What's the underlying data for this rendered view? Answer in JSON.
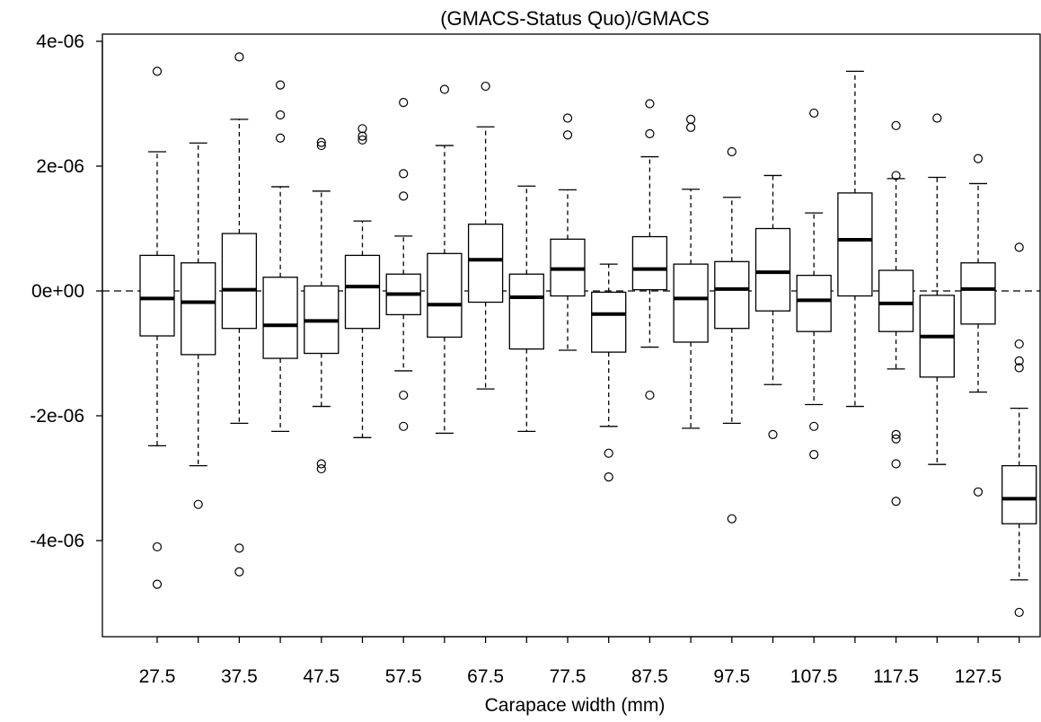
{
  "chart_data": {
    "type": "boxplot",
    "title": "(GMACS-Status Quo)/GMACS",
    "xlabel": "Carapace width (mm)",
    "ylabel": "",
    "ylim": [
      -5.25e-06,
      4.05e-06
    ],
    "y_ticks": [
      {
        "value": 4e-06,
        "label": "4e-06"
      },
      {
        "value": 2e-06,
        "label": "2e-06"
      },
      {
        "value": 0,
        "label": "0e+00"
      },
      {
        "value": -2e-06,
        "label": "-2e-06"
      },
      {
        "value": -4e-06,
        "label": "-4e-06"
      }
    ],
    "x_tick_labels": [
      "27.5",
      "37.5",
      "47.5",
      "57.5",
      "67.5",
      "77.5",
      "87.5",
      "97.5",
      "107.5",
      "117.5",
      "127.5"
    ],
    "reference_line": {
      "y": 0,
      "style": "dashed"
    },
    "grid": false,
    "boxes": [
      {
        "x": 27.5,
        "lower_whisker": -2.48e-06,
        "q1": -7.2e-07,
        "median": -1.2e-07,
        "q3": 5.7e-07,
        "upper_whisker": 2.23e-06,
        "outliers": [
          3.52e-06,
          -4.1e-06,
          -4.7e-06
        ]
      },
      {
        "x": 32.5,
        "lower_whisker": -2.8e-06,
        "q1": -1.02e-06,
        "median": -1.8e-07,
        "q3": 4.5e-07,
        "upper_whisker": 2.37e-06,
        "outliers": [
          -3.42e-06
        ]
      },
      {
        "x": 37.5,
        "lower_whisker": -2.12e-06,
        "q1": -6e-07,
        "median": 2e-08,
        "q3": 9.2e-07,
        "upper_whisker": 2.75e-06,
        "outliers": [
          3.75e-06,
          -4.12e-06,
          -4.5e-06
        ]
      },
      {
        "x": 42.5,
        "lower_whisker": -2.25e-06,
        "q1": -1.08e-06,
        "median": -5.5e-07,
        "q3": 2.2e-07,
        "upper_whisker": 1.67e-06,
        "outliers": [
          3.3e-06,
          2.82e-06,
          2.45e-06
        ]
      },
      {
        "x": 47.5,
        "lower_whisker": -1.85e-06,
        "q1": -1e-06,
        "median": -4.8e-07,
        "q3": 8e-08,
        "upper_whisker": 1.6e-06,
        "outliers": [
          2.38e-06,
          2.33e-06,
          -2.77e-06,
          -2.85e-06
        ]
      },
      {
        "x": 52.5,
        "lower_whisker": -2.35e-06,
        "q1": -6e-07,
        "median": 7e-08,
        "q3": 5.7e-07,
        "upper_whisker": 1.12e-06,
        "outliers": [
          2.6e-06,
          2.48e-06,
          2.42e-06
        ]
      },
      {
        "x": 57.5,
        "lower_whisker": -1.28e-06,
        "q1": -3.8e-07,
        "median": -5e-08,
        "q3": 2.7e-07,
        "upper_whisker": 8.8e-07,
        "outliers": [
          3.02e-06,
          1.88e-06,
          1.52e-06,
          -1.67e-06,
          -2.17e-06
        ]
      },
      {
        "x": 62.5,
        "lower_whisker": -2.28e-06,
        "q1": -7.4e-07,
        "median": -2.2e-07,
        "q3": 6e-07,
        "upper_whisker": 2.33e-06,
        "outliers": [
          3.23e-06
        ]
      },
      {
        "x": 67.5,
        "lower_whisker": -1.57e-06,
        "q1": -1.8e-07,
        "median": 5e-07,
        "q3": 1.07e-06,
        "upper_whisker": 2.63e-06,
        "outliers": [
          3.28e-06
        ]
      },
      {
        "x": 72.5,
        "lower_whisker": -2.25e-06,
        "q1": -9.3e-07,
        "median": -1e-07,
        "q3": 2.7e-07,
        "upper_whisker": 1.68e-06,
        "outliers": []
      },
      {
        "x": 77.5,
        "lower_whisker": -9.5e-07,
        "q1": -8e-08,
        "median": 3.5e-07,
        "q3": 8.3e-07,
        "upper_whisker": 1.62e-06,
        "outliers": [
          2.77e-06,
          2.5e-06
        ]
      },
      {
        "x": 82.5,
        "lower_whisker": -2.17e-06,
        "q1": -9.8e-07,
        "median": -3.7e-07,
        "q3": -2e-08,
        "upper_whisker": 4.3e-07,
        "outliers": [
          -2.6e-06,
          -2.98e-06
        ]
      },
      {
        "x": 87.5,
        "lower_whisker": -9e-07,
        "q1": 2e-08,
        "median": 3.5e-07,
        "q3": 8.7e-07,
        "upper_whisker": 2.15e-06,
        "outliers": [
          3e-06,
          2.52e-06,
          -1.67e-06
        ]
      },
      {
        "x": 92.5,
        "lower_whisker": -2.2e-06,
        "q1": -8.2e-07,
        "median": -1.2e-07,
        "q3": 4.3e-07,
        "upper_whisker": 1.63e-06,
        "outliers": [
          2.75e-06,
          2.62e-06
        ]
      },
      {
        "x": 97.5,
        "lower_whisker": -2.12e-06,
        "q1": -6e-07,
        "median": 3e-08,
        "q3": 4.7e-07,
        "upper_whisker": 1.5e-06,
        "outliers": [
          2.23e-06,
          -3.65e-06
        ]
      },
      {
        "x": 102.5,
        "lower_whisker": -1.5e-06,
        "q1": -3.2e-07,
        "median": 3e-07,
        "q3": 1e-06,
        "upper_whisker": 1.85e-06,
        "outliers": [
          -2.3e-06
        ]
      },
      {
        "x": 107.5,
        "lower_whisker": -1.82e-06,
        "q1": -6.5e-07,
        "median": -1.5e-07,
        "q3": 2.5e-07,
        "upper_whisker": 1.25e-06,
        "outliers": [
          2.85e-06,
          -2.17e-06,
          -2.62e-06
        ]
      },
      {
        "x": 112.5,
        "lower_whisker": -1.85e-06,
        "q1": -8e-08,
        "median": 8.2e-07,
        "q3": 1.57e-06,
        "upper_whisker": 3.52e-06,
        "outliers": []
      },
      {
        "x": 117.5,
        "lower_whisker": -1.25e-06,
        "q1": -6.5e-07,
        "median": -2e-07,
        "q3": 3.3e-07,
        "upper_whisker": 1.8e-06,
        "outliers": [
          2.65e-06,
          1.85e-06,
          -2.3e-06,
          -2.37e-06,
          -2.77e-06,
          -3.37e-06
        ]
      },
      {
        "x": 122.5,
        "lower_whisker": -2.78e-06,
        "q1": -1.38e-06,
        "median": -7.3e-07,
        "q3": -7e-08,
        "upper_whisker": 1.82e-06,
        "outliers": [
          2.77e-06
        ]
      },
      {
        "x": 127.5,
        "lower_whisker": -1.62e-06,
        "q1": -5.3e-07,
        "median": 3e-08,
        "q3": 4.5e-07,
        "upper_whisker": 1.72e-06,
        "outliers": [
          2.12e-06,
          -3.22e-06
        ]
      },
      {
        "x": 132.5,
        "lower_whisker": -4.63e-06,
        "q1": -3.73e-06,
        "median": -3.33e-06,
        "q3": -2.8e-06,
        "upper_whisker": -1.88e-06,
        "outliers": [
          7e-07,
          -8.5e-07,
          -1.12e-06,
          -1.23e-06,
          -5.15e-06
        ]
      }
    ]
  }
}
